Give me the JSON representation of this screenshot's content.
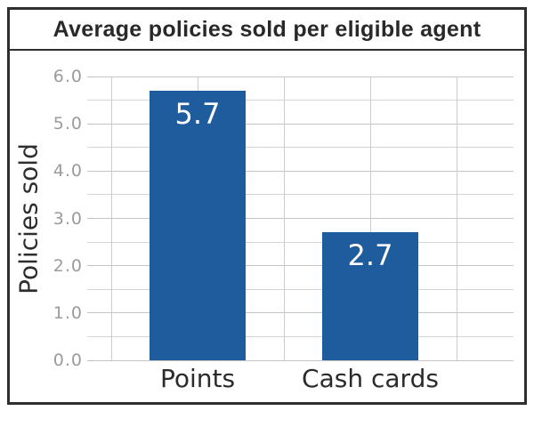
{
  "chart_data": {
    "type": "bar",
    "title": "Average policies sold per eligible agent",
    "categories": [
      "Points",
      "Cash cards"
    ],
    "values": [
      5.7,
      2.7
    ],
    "value_labels": [
      "5.7",
      "2.7"
    ],
    "ylabel": "Policies sold",
    "xlabel": "",
    "ylim": [
      0,
      6
    ],
    "ytick_interval": 1.0,
    "minor_gridline_interval": 0.5,
    "ytick_labels": [
      "6.0",
      "5.0",
      "4.0",
      "3.0",
      "2.0",
      "1.0",
      "0.0"
    ],
    "grid": true,
    "legend_position": "none",
    "colors": {
      "bar": "#1f5c9e",
      "major_gridline": "#c4c4c4",
      "minor_gridline": "#d4d4d4",
      "tick_label": "#9b9b9b",
      "title_text": "#292929",
      "axis_text": "#2e2e2e",
      "category_text": "#2b2b2b",
      "data_label": "#ffffff",
      "frame_border": "#2f2f2f",
      "background": "#ffffff"
    }
  }
}
